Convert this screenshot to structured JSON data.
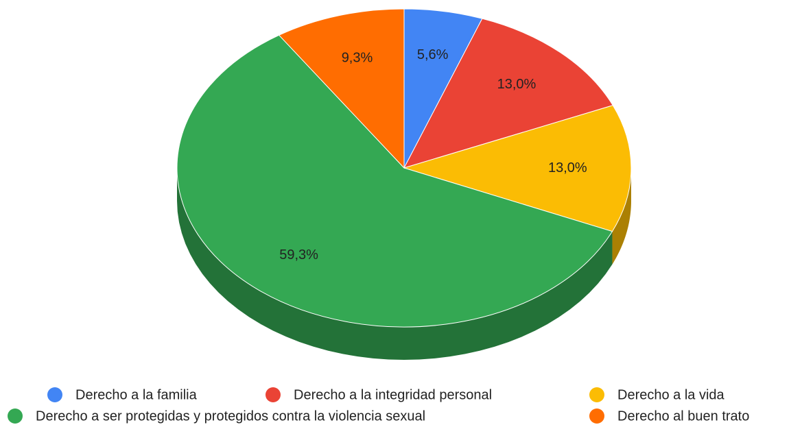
{
  "chart_data": {
    "type": "pie",
    "three_d": true,
    "categories": [
      "Derecho a la familia",
      "Derecho a la integridad personal",
      "Derecho a la vida",
      "Derecho a ser protegidas y protegidos contra la violencia sexual",
      "Derecho al buen trato"
    ],
    "values": [
      5.6,
      13.0,
      13.0,
      59.3,
      9.3
    ],
    "value_labels": [
      "5,6%",
      "13,0%",
      "13,0%",
      "59,3%",
      "9,3%"
    ],
    "colors": [
      "#4285f4",
      "#ea4335",
      "#fbbc04",
      "#34a853",
      "#ff6d01"
    ],
    "legend": "bottom"
  }
}
